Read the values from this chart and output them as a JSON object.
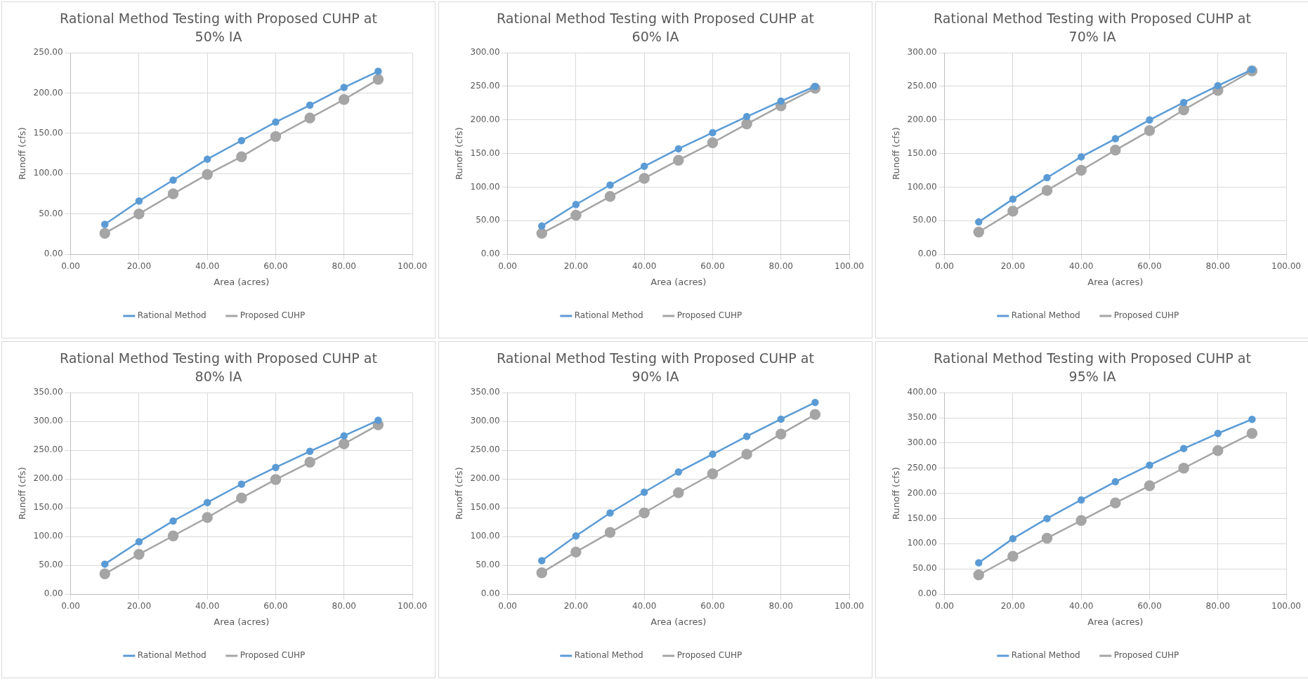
{
  "chart_data": [
    {
      "type": "line",
      "title": "Rational Method Testing with Proposed CUHP at 50% IA",
      "xlabel": "Area (acres)",
      "ylabel": "Runoff (cfs)",
      "x": [
        10,
        20,
        30,
        40,
        50,
        60,
        70,
        80,
        90
      ],
      "xlim": [
        0,
        100
      ],
      "xticks": [
        {
          "value": 0,
          "label": "0.00"
        },
        {
          "value": 20,
          "label": "20.00"
        },
        {
          "value": 40,
          "label": "40.00"
        },
        {
          "value": 60,
          "label": "60.00"
        },
        {
          "value": 80,
          "label": "80.00"
        },
        {
          "value": 100,
          "label": "100.00"
        }
      ],
      "ylim": [
        0,
        250
      ],
      "yticks": [
        {
          "value": 0,
          "label": "0.00"
        },
        {
          "value": 50,
          "label": "50.00"
        },
        {
          "value": 100,
          "label": "100.00"
        },
        {
          "value": 150,
          "label": "150.00"
        },
        {
          "value": 200,
          "label": "200.00"
        },
        {
          "value": 250,
          "label": "250.00"
        }
      ],
      "grid": true,
      "legend": "bottom",
      "marker": "circle",
      "line_style": "solid",
      "series": [
        {
          "name": "Rational Method",
          "color": "#5b9bd5",
          "values": [
            37,
            66,
            92,
            118,
            141,
            164,
            185,
            207,
            227
          ]
        },
        {
          "name": "Proposed CUHP",
          "color": "#a5a5a5",
          "values": [
            26,
            50,
            75,
            99,
            121,
            146,
            169,
            192,
            217
          ]
        }
      ]
    },
    {
      "type": "line",
      "title": "Rational Method Testing with Proposed CUHP at 60% IA",
      "xlabel": "Area (acres)",
      "ylabel": "Runoff (cfs)",
      "x": [
        10,
        20,
        30,
        40,
        50,
        60,
        70,
        80,
        90
      ],
      "xlim": [
        0,
        100
      ],
      "xticks": [
        {
          "value": 0,
          "label": "0.00"
        },
        {
          "value": 20,
          "label": "20.00"
        },
        {
          "value": 40,
          "label": "40.00"
        },
        {
          "value": 60,
          "label": "60.00"
        },
        {
          "value": 80,
          "label": "80.00"
        },
        {
          "value": 100,
          "label": "100.00"
        }
      ],
      "ylim": [
        0,
        300
      ],
      "yticks": [
        {
          "value": 0,
          "label": "0.00"
        },
        {
          "value": 50,
          "label": "50.00"
        },
        {
          "value": 100,
          "label": "100.00"
        },
        {
          "value": 150,
          "label": "150.00"
        },
        {
          "value": 200,
          "label": "200.00"
        },
        {
          "value": 250,
          "label": "250.00"
        },
        {
          "value": 300,
          "label": "300.00"
        }
      ],
      "grid": true,
      "legend": "bottom",
      "marker": "circle",
      "line_style": "solid",
      "series": [
        {
          "name": "Rational Method",
          "color": "#5b9bd5",
          "values": [
            42,
            74,
            103,
            131,
            157,
            181,
            205,
            228,
            250
          ]
        },
        {
          "name": "Proposed CUHP",
          "color": "#a5a5a5",
          "values": [
            31,
            58,
            86,
            113,
            140,
            166,
            194,
            221,
            247
          ]
        }
      ]
    },
    {
      "type": "line",
      "title": "Rational Method Testing with Proposed CUHP at 70% IA",
      "xlabel": "Area (acres)",
      "ylabel": "Runoff (cfs)",
      "x": [
        10,
        20,
        30,
        40,
        50,
        60,
        70,
        80,
        90
      ],
      "xlim": [
        0,
        100
      ],
      "xticks": [
        {
          "value": 0,
          "label": "0.00"
        },
        {
          "value": 20,
          "label": "20.00"
        },
        {
          "value": 40,
          "label": "40.00"
        },
        {
          "value": 60,
          "label": "60.00"
        },
        {
          "value": 80,
          "label": "80.00"
        },
        {
          "value": 100,
          "label": "100.00"
        }
      ],
      "ylim": [
        0,
        300
      ],
      "yticks": [
        {
          "value": 0,
          "label": "0.00"
        },
        {
          "value": 50,
          "label": "50.00"
        },
        {
          "value": 100,
          "label": "100.00"
        },
        {
          "value": 150,
          "label": "150.00"
        },
        {
          "value": 200,
          "label": "200.00"
        },
        {
          "value": 250,
          "label": "250.00"
        },
        {
          "value": 300,
          "label": "300.00"
        }
      ],
      "grid": true,
      "legend": "bottom",
      "marker": "circle",
      "line_style": "solid",
      "series": [
        {
          "name": "Rational Method",
          "color": "#5b9bd5",
          "values": [
            48,
            82,
            114,
            145,
            172,
            200,
            226,
            251,
            275
          ]
        },
        {
          "name": "Proposed CUHP",
          "color": "#a5a5a5",
          "values": [
            33,
            64,
            95,
            125,
            155,
            184,
            215,
            244,
            273
          ]
        }
      ]
    },
    {
      "type": "line",
      "title": "Rational Method Testing with Proposed CUHP at 80% IA",
      "xlabel": "Area (acres)",
      "ylabel": "Runoff (cfs)",
      "x": [
        10,
        20,
        30,
        40,
        50,
        60,
        70,
        80,
        90
      ],
      "xlim": [
        0,
        100
      ],
      "xticks": [
        {
          "value": 0,
          "label": "0.00"
        },
        {
          "value": 20,
          "label": "20.00"
        },
        {
          "value": 40,
          "label": "40.00"
        },
        {
          "value": 60,
          "label": "60.00"
        },
        {
          "value": 80,
          "label": "80.00"
        },
        {
          "value": 100,
          "label": "100.00"
        }
      ],
      "ylim": [
        0,
        350
      ],
      "yticks": [
        {
          "value": 0,
          "label": "0.00"
        },
        {
          "value": 50,
          "label": "50.00"
        },
        {
          "value": 100,
          "label": "100.00"
        },
        {
          "value": 150,
          "label": "150.00"
        },
        {
          "value": 200,
          "label": "200.00"
        },
        {
          "value": 250,
          "label": "250.00"
        },
        {
          "value": 300,
          "label": "300.00"
        },
        {
          "value": 350,
          "label": "350.00"
        }
      ],
      "grid": true,
      "legend": "bottom",
      "marker": "circle",
      "line_style": "solid",
      "series": [
        {
          "name": "Rational Method",
          "color": "#5b9bd5",
          "values": [
            52,
            91,
            127,
            159,
            191,
            220,
            248,
            275,
            302
          ]
        },
        {
          "name": "Proposed CUHP",
          "color": "#a5a5a5",
          "values": [
            35,
            69,
            101,
            133,
            167,
            199,
            229,
            261,
            294
          ]
        }
      ]
    },
    {
      "type": "line",
      "title": "Rational Method Testing with Proposed CUHP at 90% IA",
      "xlabel": "Area (acres)",
      "ylabel": "Runoff (cfs)",
      "x": [
        10,
        20,
        30,
        40,
        50,
        60,
        70,
        80,
        90
      ],
      "xlim": [
        0,
        100
      ],
      "xticks": [
        {
          "value": 0,
          "label": "0.00"
        },
        {
          "value": 20,
          "label": "20.00"
        },
        {
          "value": 40,
          "label": "40.00"
        },
        {
          "value": 60,
          "label": "60.00"
        },
        {
          "value": 80,
          "label": "80.00"
        },
        {
          "value": 100,
          "label": "100.00"
        }
      ],
      "ylim": [
        0,
        350
      ],
      "yticks": [
        {
          "value": 0,
          "label": "0.00"
        },
        {
          "value": 50,
          "label": "50.00"
        },
        {
          "value": 100,
          "label": "100.00"
        },
        {
          "value": 150,
          "label": "150.00"
        },
        {
          "value": 200,
          "label": "200.00"
        },
        {
          "value": 250,
          "label": "250.00"
        },
        {
          "value": 300,
          "label": "300.00"
        },
        {
          "value": 350,
          "label": "350.00"
        }
      ],
      "grid": true,
      "legend": "bottom",
      "marker": "circle",
      "line_style": "solid",
      "series": [
        {
          "name": "Rational Method",
          "color": "#5b9bd5",
          "values": [
            58,
            101,
            141,
            177,
            212,
            243,
            274,
            304,
            333
          ]
        },
        {
          "name": "Proposed CUHP",
          "color": "#a5a5a5",
          "values": [
            37,
            73,
            107,
            141,
            176,
            209,
            243,
            278,
            312
          ]
        }
      ]
    },
    {
      "type": "line",
      "title": "Rational Method Testing with Proposed CUHP at 95% IA",
      "xlabel": "Area (acres)",
      "ylabel": "Runoff (cfs)",
      "x": [
        10,
        20,
        30,
        40,
        50,
        60,
        70,
        80,
        90
      ],
      "xlim": [
        0,
        100
      ],
      "xticks": [
        {
          "value": 0,
          "label": "0.00"
        },
        {
          "value": 20,
          "label": "20.00"
        },
        {
          "value": 40,
          "label": "40.00"
        },
        {
          "value": 60,
          "label": "60.00"
        },
        {
          "value": 80,
          "label": "80.00"
        },
        {
          "value": 100,
          "label": "100.00"
        }
      ],
      "ylim": [
        0,
        400
      ],
      "yticks": [
        {
          "value": 0,
          "label": "0.00"
        },
        {
          "value": 50,
          "label": "50.00"
        },
        {
          "value": 100,
          "label": "100.00"
        },
        {
          "value": 150,
          "label": "150.00"
        },
        {
          "value": 200,
          "label": "200.00"
        },
        {
          "value": 250,
          "label": "250.00"
        },
        {
          "value": 300,
          "label": "300.00"
        },
        {
          "value": 350,
          "label": "350.00"
        },
        {
          "value": 400,
          "label": "400.00"
        }
      ],
      "grid": true,
      "legend": "bottom",
      "marker": "circle",
      "line_style": "solid",
      "series": [
        {
          "name": "Rational Method",
          "color": "#5b9bd5",
          "values": [
            62,
            110,
            150,
            187,
            223,
            256,
            289,
            319,
            347
          ]
        },
        {
          "name": "Proposed CUHP",
          "color": "#a5a5a5",
          "values": [
            38,
            75,
            111,
            146,
            181,
            215,
            250,
            285,
            319
          ]
        }
      ]
    }
  ]
}
